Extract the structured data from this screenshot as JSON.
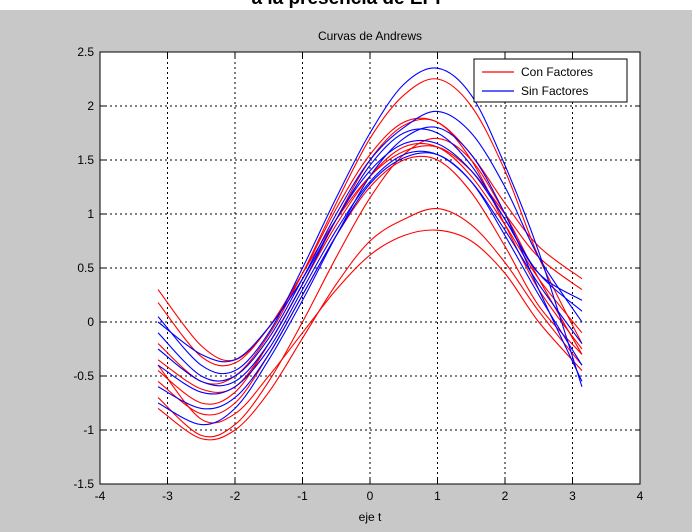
{
  "page_title": "a la presencia de EPI",
  "chart_data": {
    "type": "line",
    "title": "Curvas de Andrews",
    "xlabel": "eje t",
    "ylabel": "",
    "xlim": [
      -4,
      4
    ],
    "ylim": [
      -1.5,
      2.5
    ],
    "xticks": [
      -4,
      -3,
      -2,
      -1,
      0,
      1,
      2,
      3,
      4
    ],
    "yticks": [
      -1.5,
      -1,
      -0.5,
      0,
      0.5,
      1,
      1.5,
      2,
      2.5
    ],
    "x_tick_labels": [
      "-4",
      "-3",
      "-2",
      "-1",
      "0",
      "1",
      "2",
      "3",
      "4"
    ],
    "y_tick_labels": [
      "-1.5",
      "-1",
      "-0.5",
      "0",
      "0.5",
      "1",
      "1.5",
      "2",
      "2.5"
    ],
    "grid": true,
    "legend_position": "top-right",
    "colors": {
      "Con Factores": "#ff0000",
      "Sin Factores": "#0000ff"
    },
    "legend": [
      "Con Factores",
      "Sin Factores"
    ],
    "x": [
      -3.14,
      -2.5,
      -2.0,
      -1.5,
      -1.0,
      -0.5,
      0.0,
      0.5,
      1.0,
      1.5,
      2.0,
      2.5,
      3.14
    ],
    "series": [
      {
        "name": "Con Factores",
        "values": [
          0.3,
          -0.22,
          -0.35,
          -0.05,
          0.45,
          1.05,
          1.55,
          1.85,
          1.85,
          1.55,
          1.1,
          0.7,
          0.4
        ]
      },
      {
        "name": "Con Factores",
        "values": [
          0.18,
          -0.32,
          -0.38,
          -0.05,
          0.45,
          0.95,
          1.35,
          1.58,
          1.62,
          1.4,
          1.0,
          0.6,
          0.3
        ]
      },
      {
        "name": "Con Factores",
        "values": [
          -0.2,
          -0.55,
          -0.5,
          -0.12,
          0.45,
          1.1,
          1.7,
          2.1,
          2.25,
          2.0,
          1.4,
          0.6,
          -0.2
        ]
      },
      {
        "name": "Con Factores",
        "values": [
          -0.35,
          -0.62,
          -0.6,
          -0.2,
          0.35,
          0.9,
          1.35,
          1.62,
          1.62,
          1.35,
          0.9,
          0.4,
          -0.1
        ]
      },
      {
        "name": "Con Factores",
        "values": [
          -0.45,
          -0.75,
          -0.65,
          -0.2,
          0.35,
          0.95,
          1.5,
          1.82,
          1.85,
          1.5,
          0.9,
          0.3,
          -0.25
        ]
      },
      {
        "name": "Con Factores",
        "values": [
          -0.55,
          -0.85,
          -0.75,
          -0.3,
          0.25,
          0.8,
          1.25,
          1.5,
          1.5,
          1.2,
          0.7,
          0.15,
          -0.3
        ]
      },
      {
        "name": "Con Factores",
        "values": [
          -0.7,
          -1.05,
          -0.95,
          -0.55,
          0.0,
          0.6,
          1.15,
          1.55,
          1.7,
          1.5,
          1.0,
          0.4,
          -0.3
        ]
      },
      {
        "name": "Con Factores",
        "values": [
          -0.8,
          -1.08,
          -1.0,
          -0.65,
          -0.15,
          0.35,
          0.75,
          0.95,
          1.05,
          0.9,
          0.55,
          0.1,
          -0.4
        ]
      },
      {
        "name": "Con Factores",
        "values": [
          -0.4,
          -0.9,
          -0.85,
          -0.5,
          -0.1,
          0.3,
          0.62,
          0.8,
          0.85,
          0.75,
          0.45,
          0.0,
          -0.45
        ]
      },
      {
        "name": "Sin Factores",
        "values": [
          0.05,
          -0.4,
          -0.45,
          -0.1,
          0.5,
          1.15,
          1.75,
          2.2,
          2.35,
          2.1,
          1.45,
          0.65,
          -0.6
        ]
      },
      {
        "name": "Sin Factores",
        "values": [
          -0.1,
          -0.5,
          -0.5,
          -0.15,
          0.4,
          1.0,
          1.5,
          1.8,
          1.95,
          1.75,
          1.25,
          0.6,
          0.0
        ]
      },
      {
        "name": "Sin Factores",
        "values": [
          -0.25,
          -0.55,
          -0.55,
          -0.2,
          0.35,
          0.95,
          1.4,
          1.65,
          1.65,
          1.4,
          0.95,
          0.45,
          0.1
        ]
      },
      {
        "name": "Sin Factores",
        "values": [
          -0.4,
          -0.65,
          -0.6,
          -0.25,
          0.3,
          0.85,
          1.3,
          1.55,
          1.55,
          1.3,
          0.85,
          0.35,
          -0.2
        ]
      },
      {
        "name": "Sin Factores",
        "values": [
          -0.6,
          -0.8,
          -0.7,
          -0.3,
          0.25,
          0.8,
          1.28,
          1.52,
          1.55,
          1.3,
          0.8,
          0.25,
          -0.4
        ]
      },
      {
        "name": "Sin Factores",
        "values": [
          -0.75,
          -0.95,
          -0.8,
          -0.35,
          0.2,
          0.8,
          1.35,
          1.7,
          1.8,
          1.55,
          1.0,
          0.3,
          -0.55
        ]
      },
      {
        "name": "Sin Factores",
        "values": [
          0.0,
          -0.3,
          -0.35,
          -0.05,
          0.4,
          0.95,
          1.45,
          1.75,
          1.75,
          1.45,
          0.95,
          0.45,
          0.2
        ]
      }
    ]
  }
}
